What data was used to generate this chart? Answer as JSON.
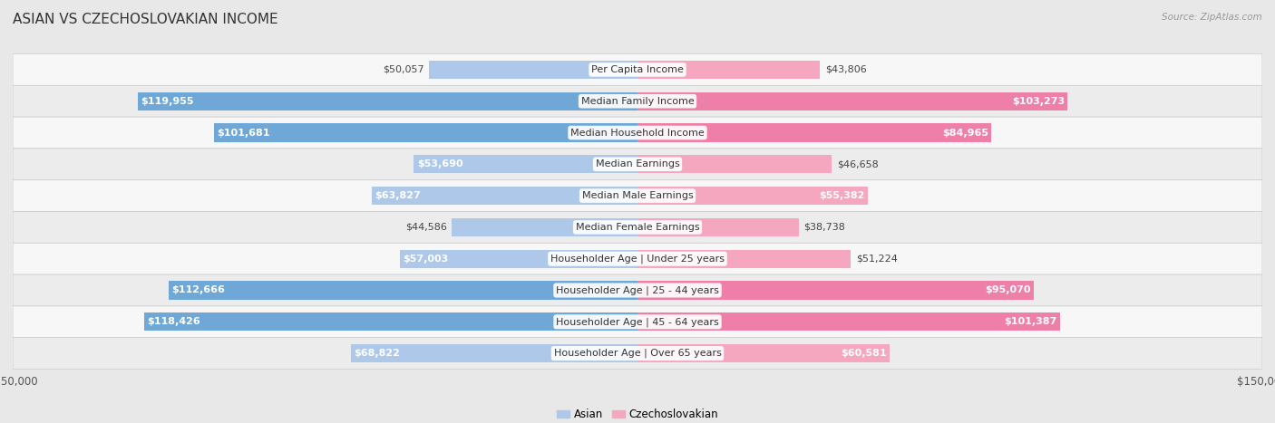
{
  "title": "ASIAN VS CZECHOSLOVAKIAN INCOME",
  "source": "Source: ZipAtlas.com",
  "categories": [
    "Per Capita Income",
    "Median Family Income",
    "Median Household Income",
    "Median Earnings",
    "Median Male Earnings",
    "Median Female Earnings",
    "Householder Age | Under 25 years",
    "Householder Age | 25 - 44 years",
    "Householder Age | 45 - 64 years",
    "Householder Age | Over 65 years"
  ],
  "asian_values": [
    50057,
    119955,
    101681,
    53690,
    63827,
    44586,
    57003,
    112666,
    118426,
    68822
  ],
  "czech_values": [
    43806,
    103273,
    84965,
    46658,
    55382,
    38738,
    51224,
    95070,
    101387,
    60581
  ],
  "asian_labels": [
    "$50,057",
    "$119,955",
    "$101,681",
    "$53,690",
    "$63,827",
    "$44,586",
    "$57,003",
    "$112,666",
    "$118,426",
    "$68,822"
  ],
  "czech_labels": [
    "$43,806",
    "$103,273",
    "$84,965",
    "$46,658",
    "$55,382",
    "$38,738",
    "$51,224",
    "$95,070",
    "$101,387",
    "$60,581"
  ],
  "asian_color_light": "#adc8e8",
  "asian_color_dark": "#6fa8d6",
  "czech_color_light": "#f4a7bf",
  "czech_color_dark": "#ee7fa8",
  "inside_threshold": 70000,
  "max_value": 150000,
  "bar_height": 0.58,
  "row_colors": [
    "#f7f7f7",
    "#ececec"
  ],
  "fig_bg": "#e8e8e8",
  "title_fontsize": 11,
  "label_fontsize": 8,
  "category_fontsize": 8,
  "legend_asian": "Asian",
  "legend_czech": "Czechoslovakian"
}
